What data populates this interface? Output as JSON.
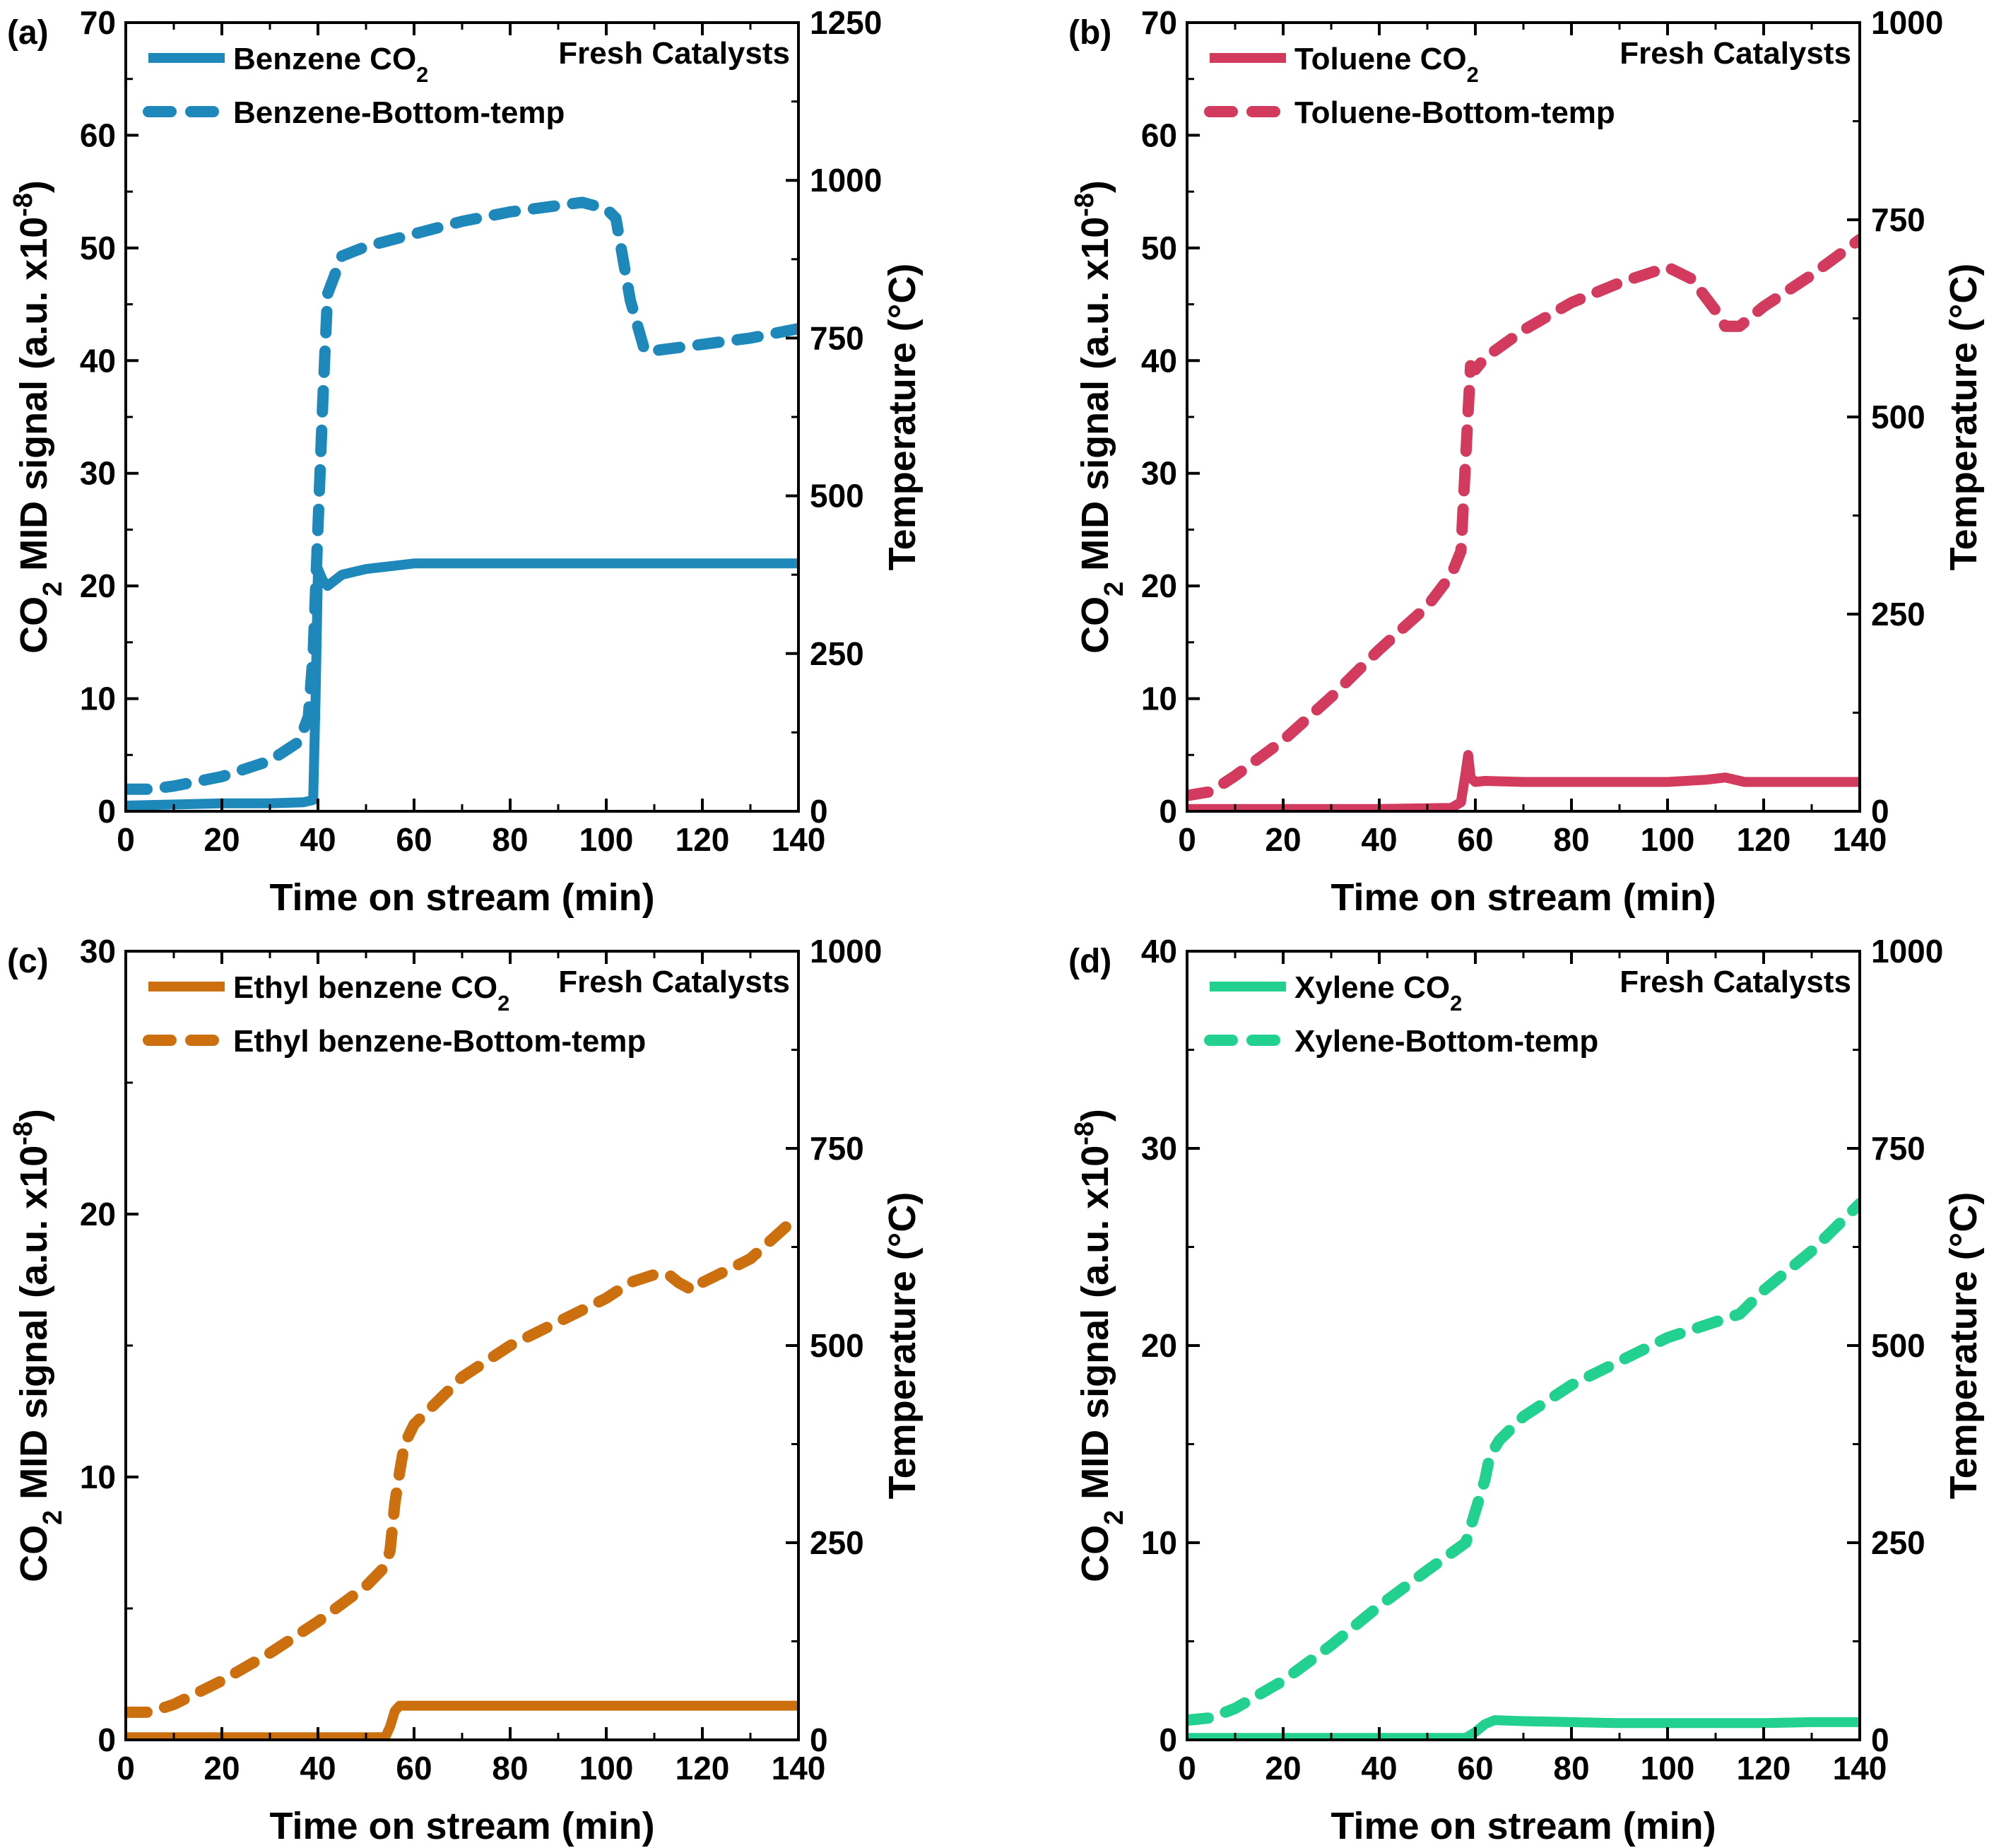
{
  "figure": {
    "shared": {
      "xlabel": "Time on stream (min)",
      "ylabel": "CO₂ MID signal (a.u. x10⁻⁸)",
      "y2label": "Temperature (°C)",
      "annotation": "Fresh Catalysts",
      "xticks": [
        "0",
        "20",
        "40",
        "60",
        "80",
        "100",
        "120",
        "140"
      ]
    }
  },
  "chart_data": [
    {
      "type": "line",
      "panel": "(a)",
      "color": "#1f88bb",
      "xlim": [
        0,
        140
      ],
      "ylim": [
        0,
        70
      ],
      "y2lim": [
        0,
        1250
      ],
      "yticks": [
        "0",
        "10",
        "20",
        "30",
        "40",
        "50",
        "60",
        "70"
      ],
      "y2ticks": [
        "0",
        "250",
        "500",
        "750",
        "1000",
        "1250"
      ],
      "series": [
        {
          "name": "Benzene CO₂",
          "axis": "left",
          "style": "solid",
          "x": [
            0,
            10,
            20,
            30,
            37,
            39,
            39.5,
            40,
            41,
            42,
            45,
            50,
            60,
            70,
            80,
            90,
            100,
            110,
            120,
            130,
            140
          ],
          "y": [
            0.5,
            0.6,
            0.7,
            0.7,
            0.8,
            1.0,
            10,
            21.5,
            20.5,
            20,
            21,
            21.5,
            22,
            22,
            22,
            22,
            22,
            22,
            22,
            22,
            22
          ]
        },
        {
          "name": "Benzene-Bottom-temp",
          "axis": "right",
          "style": "dashed",
          "x": [
            0,
            5,
            10,
            20,
            30,
            36,
            38,
            39,
            40,
            41,
            42,
            45,
            50,
            60,
            70,
            80,
            90,
            95,
            100,
            102,
            105,
            108,
            110,
            120,
            130,
            140
          ],
          "y": [
            35,
            35,
            40,
            55,
            80,
            110,
            150,
            250,
            450,
            650,
            820,
            880,
            895,
            915,
            935,
            950,
            960,
            965,
            955,
            940,
            810,
            730,
            730,
            740,
            750,
            765
          ]
        }
      ]
    },
    {
      "type": "line",
      "panel": "(b)",
      "color": "#d23b5e",
      "xlim": [
        0,
        140
      ],
      "ylim": [
        0,
        70
      ],
      "y2lim": [
        0,
        1000
      ],
      "yticks": [
        "0",
        "10",
        "20",
        "30",
        "40",
        "50",
        "60",
        "70"
      ],
      "y2ticks": [
        "0",
        "250",
        "500",
        "750",
        "1000"
      ],
      "series": [
        {
          "name": "Toluene CO₂",
          "axis": "left",
          "style": "solid",
          "x": [
            0,
            20,
            40,
            55,
            57,
            58,
            58.5,
            59,
            60,
            62,
            70,
            80,
            90,
            100,
            108,
            112,
            116,
            120,
            130,
            140
          ],
          "y": [
            0.2,
            0.2,
            0.2,
            0.3,
            0.8,
            3.5,
            5.0,
            3.0,
            2.6,
            2.7,
            2.6,
            2.6,
            2.6,
            2.6,
            2.8,
            3.0,
            2.6,
            2.6,
            2.6,
            2.6
          ]
        },
        {
          "name": "Toluene-Bottom-temp",
          "axis": "right",
          "style": "dashed",
          "x": [
            0,
            5,
            10,
            20,
            30,
            40,
            50,
            55,
            57,
            58,
            59,
            60,
            62,
            70,
            80,
            90,
            100,
            105,
            110,
            112,
            115,
            120,
            130,
            140
          ],
          "y": [
            20,
            25,
            45,
            90,
            145,
            205,
            260,
            300,
            330,
            450,
            565,
            560,
            575,
            610,
            645,
            670,
            690,
            675,
            635,
            615,
            615,
            640,
            680,
            725
          ]
        }
      ]
    },
    {
      "type": "line",
      "panel": "(c)",
      "color": "#cc6f0f",
      "xlim": [
        0,
        140
      ],
      "ylim": [
        0,
        30
      ],
      "y2lim": [
        0,
        1000
      ],
      "yticks": [
        "0",
        "10",
        "20",
        "30"
      ],
      "y2ticks": [
        "0",
        "250",
        "500",
        "750",
        "1000"
      ],
      "series": [
        {
          "name": "Ethyl benzene CO₂",
          "axis": "left",
          "style": "solid",
          "x": [
            0,
            20,
            40,
            54,
            55,
            56,
            57,
            60,
            70,
            80,
            90,
            100,
            110,
            120,
            130,
            140
          ],
          "y": [
            0.1,
            0.1,
            0.1,
            0.1,
            0.5,
            1.1,
            1.3,
            1.3,
            1.3,
            1.3,
            1.3,
            1.3,
            1.3,
            1.3,
            1.3,
            1.3
          ]
        },
        {
          "name": "Ethyl benzene-Bottom-temp",
          "axis": "right",
          "style": "dashed",
          "x": [
            0,
            5,
            10,
            20,
            30,
            40,
            50,
            54,
            55,
            56,
            57,
            58,
            60,
            65,
            70,
            80,
            90,
            100,
            105,
            110,
            113,
            115,
            118,
            120,
            125,
            130,
            140
          ],
          "y": [
            35,
            35,
            45,
            75,
            110,
            150,
            195,
            220,
            240,
            300,
            340,
            375,
            400,
            430,
            460,
            500,
            530,
            560,
            580,
            590,
            590,
            580,
            570,
            580,
            595,
            610,
            665
          ]
        }
      ]
    },
    {
      "type": "line",
      "panel": "(d)",
      "color": "#22d190",
      "xlim": [
        0,
        140
      ],
      "ylim": [
        0,
        40
      ],
      "y2lim": [
        0,
        1000
      ],
      "yticks": [
        "0",
        "10",
        "20",
        "30",
        "40"
      ],
      "y2ticks": [
        "0",
        "250",
        "500",
        "750",
        "1000"
      ],
      "series": [
        {
          "name": "Xylene CO₂",
          "axis": "left",
          "style": "solid",
          "x": [
            0,
            20,
            40,
            58,
            60,
            62,
            64,
            70,
            80,
            90,
            100,
            110,
            120,
            130,
            140
          ],
          "y": [
            0.1,
            0.1,
            0.1,
            0.1,
            0.4,
            0.8,
            1.0,
            0.95,
            0.9,
            0.85,
            0.85,
            0.85,
            0.85,
            0.9,
            0.9
          ]
        },
        {
          "name": "Xylene-Bottom-temp",
          "axis": "right",
          "style": "dashed",
          "x": [
            0,
            5,
            10,
            20,
            30,
            40,
            50,
            58,
            60,
            62,
            63,
            65,
            70,
            80,
            90,
            100,
            110,
            115,
            120,
            130,
            140
          ],
          "y": [
            25,
            28,
            40,
            75,
            120,
            170,
            215,
            250,
            290,
            330,
            360,
            380,
            410,
            450,
            480,
            510,
            530,
            540,
            570,
            620,
            680
          ]
        }
      ]
    }
  ]
}
